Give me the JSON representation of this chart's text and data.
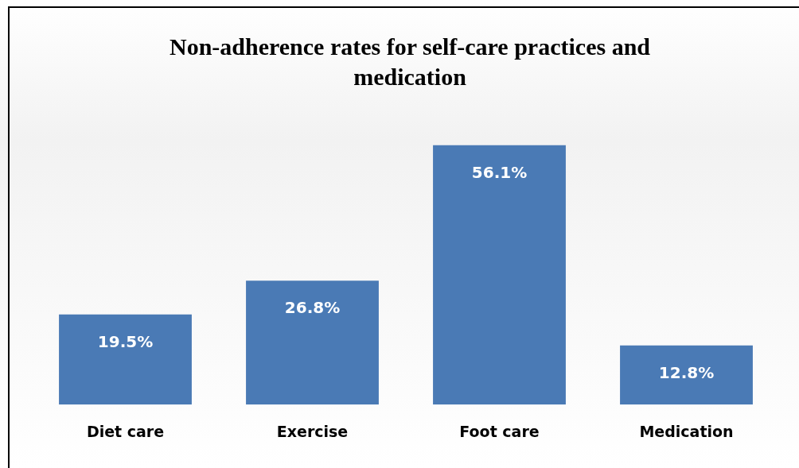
{
  "chart_data": {
    "type": "bar",
    "title": "Non-adherence rates for self-care practices and medication",
    "categories": [
      "Diet care",
      "Exercise",
      "Foot care",
      "Medication"
    ],
    "values": [
      19.5,
      26.8,
      56.1,
      12.8
    ],
    "value_labels": [
      "19.5%",
      "26.8%",
      "56.1%",
      "12.8%"
    ],
    "color": "#4a7ab5",
    "grid": false,
    "legend": false
  }
}
